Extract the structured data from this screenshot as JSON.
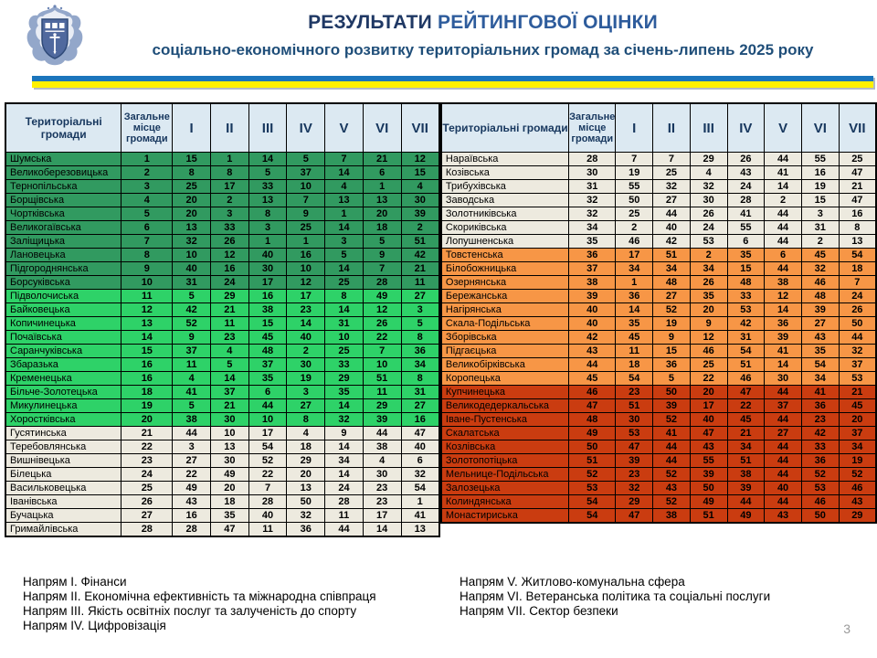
{
  "header": {
    "title_main": "РЕЗУЛЬТАТИ",
    "title_rest": " РЕЙТИНГОВОЇ ОЦІНКИ",
    "subtitle": "соціально-економічного розвитку територіальних громад за січень-липень 2025 року"
  },
  "table": {
    "col_name": "Територіальні громади",
    "col_place": "Загальне місце громади",
    "col_dirs": [
      "I",
      "II",
      "III",
      "IV",
      "V",
      "VI",
      "VII"
    ]
  },
  "tier_colors": {
    "g1": "#319A60",
    "g2": "#2ED268",
    "t0": "#EDEADF",
    "o1": "#F79646",
    "r1": "#CA3C10"
  },
  "left_rows": [
    {
      "name": "Шумська",
      "place": "1",
      "scores": [
        "15",
        "1",
        "14",
        "5",
        "7",
        "21",
        "12"
      ],
      "tier": "g1"
    },
    {
      "name": "Великоберезовицька",
      "place": "2",
      "scores": [
        "8",
        "8",
        "5",
        "37",
        "14",
        "6",
        "15"
      ],
      "tier": "g1"
    },
    {
      "name": "Тернопільська",
      "place": "3",
      "scores": [
        "25",
        "17",
        "33",
        "10",
        "4",
        "1",
        "4"
      ],
      "tier": "g1"
    },
    {
      "name": "Борщівська",
      "place": "4",
      "scores": [
        "20",
        "2",
        "13",
        "7",
        "13",
        "13",
        "30"
      ],
      "tier": "g1"
    },
    {
      "name": "Чортківська",
      "place": "5",
      "scores": [
        "20",
        "3",
        "8",
        "9",
        "1",
        "20",
        "39"
      ],
      "tier": "g1"
    },
    {
      "name": "Великогаївська",
      "place": "6",
      "scores": [
        "13",
        "33",
        "3",
        "25",
        "14",
        "18",
        "2"
      ],
      "tier": "g1"
    },
    {
      "name": "Заліщицька",
      "place": "7",
      "scores": [
        "32",
        "26",
        "1",
        "1",
        "3",
        "5",
        "51"
      ],
      "tier": "g1"
    },
    {
      "name": "Лановецька",
      "place": "8",
      "scores": [
        "10",
        "12",
        "40",
        "16",
        "5",
        "9",
        "42"
      ],
      "tier": "g1"
    },
    {
      "name": "Підгороднянська",
      "place": "9",
      "scores": [
        "40",
        "16",
        "30",
        "10",
        "14",
        "7",
        "21"
      ],
      "tier": "g1"
    },
    {
      "name": "Борсуківська",
      "place": "10",
      "scores": [
        "31",
        "24",
        "17",
        "12",
        "25",
        "28",
        "11"
      ],
      "tier": "g1"
    },
    {
      "name": "Підволочиська",
      "place": "11",
      "scores": [
        "5",
        "29",
        "16",
        "17",
        "8",
        "49",
        "27"
      ],
      "tier": "g2"
    },
    {
      "name": "Байковецька",
      "place": "12",
      "scores": [
        "42",
        "21",
        "38",
        "23",
        "14",
        "12",
        "3"
      ],
      "tier": "g2"
    },
    {
      "name": "Копичинецька",
      "place": "13",
      "scores": [
        "52",
        "11",
        "15",
        "14",
        "31",
        "26",
        "5"
      ],
      "tier": "g2"
    },
    {
      "name": "Почаївська",
      "place": "14",
      "scores": [
        "9",
        "23",
        "45",
        "40",
        "10",
        "22",
        "8"
      ],
      "tier": "g2"
    },
    {
      "name": "Саранчуківська",
      "place": "15",
      "scores": [
        "37",
        "4",
        "48",
        "2",
        "25",
        "7",
        "36"
      ],
      "tier": "g2"
    },
    {
      "name": "Збаразька",
      "place": "16",
      "scores": [
        "11",
        "5",
        "37",
        "30",
        "33",
        "10",
        "34"
      ],
      "tier": "g2"
    },
    {
      "name": "Кременецька",
      "place": "16",
      "scores": [
        "4",
        "14",
        "35",
        "19",
        "29",
        "51",
        "8"
      ],
      "tier": "g2"
    },
    {
      "name": "Більче-Золотецька",
      "place": "18",
      "scores": [
        "41",
        "37",
        "6",
        "3",
        "35",
        "11",
        "31"
      ],
      "tier": "g2"
    },
    {
      "name": "Микулинецька",
      "place": "19",
      "scores": [
        "5",
        "21",
        "44",
        "27",
        "14",
        "29",
        "27"
      ],
      "tier": "g2"
    },
    {
      "name": "Хоростківська",
      "place": "20",
      "scores": [
        "38",
        "30",
        "10",
        "8",
        "32",
        "39",
        "16"
      ],
      "tier": "g2"
    },
    {
      "name": "Гусятинська",
      "place": "21",
      "scores": [
        "44",
        "10",
        "17",
        "4",
        "9",
        "44",
        "47"
      ],
      "tier": "t0"
    },
    {
      "name": "Теребовлянська",
      "place": "22",
      "scores": [
        "3",
        "13",
        "54",
        "18",
        "14",
        "38",
        "40"
      ],
      "tier": "t0"
    },
    {
      "name": "Вишнівецька",
      "place": "23",
      "scores": [
        "27",
        "30",
        "52",
        "29",
        "34",
        "4",
        "6"
      ],
      "tier": "t0"
    },
    {
      "name": "Білецька",
      "place": "24",
      "scores": [
        "22",
        "49",
        "22",
        "20",
        "14",
        "30",
        "32"
      ],
      "tier": "t0"
    },
    {
      "name": "Васильковецька",
      "place": "25",
      "scores": [
        "49",
        "20",
        "7",
        "13",
        "24",
        "23",
        "54"
      ],
      "tier": "t0"
    },
    {
      "name": "Іванівська",
      "place": "26",
      "scores": [
        "43",
        "18",
        "28",
        "50",
        "28",
        "23",
        "1"
      ],
      "tier": "t0"
    },
    {
      "name": "Бучацька",
      "place": "27",
      "scores": [
        "16",
        "35",
        "40",
        "32",
        "11",
        "17",
        "41"
      ],
      "tier": "t0"
    },
    {
      "name": "Гримайлівська",
      "place": "28",
      "scores": [
        "28",
        "47",
        "11",
        "36",
        "44",
        "14",
        "13"
      ],
      "tier": "t0"
    }
  ],
  "right_rows": [
    {
      "name": "Нараївська",
      "place": "28",
      "scores": [
        "7",
        "7",
        "29",
        "26",
        "44",
        "55",
        "25"
      ],
      "tier": "t0"
    },
    {
      "name": "Козівська",
      "place": "30",
      "scores": [
        "19",
        "25",
        "4",
        "43",
        "41",
        "16",
        "47"
      ],
      "tier": "t0"
    },
    {
      "name": "Трибухівська",
      "place": "31",
      "scores": [
        "55",
        "32",
        "32",
        "24",
        "14",
        "19",
        "21"
      ],
      "tier": "t0"
    },
    {
      "name": "Заводська",
      "place": "32",
      "scores": [
        "50",
        "27",
        "30",
        "28",
        "2",
        "15",
        "47"
      ],
      "tier": "t0"
    },
    {
      "name": "Золотниківська",
      "place": "32",
      "scores": [
        "25",
        "44",
        "26",
        "41",
        "44",
        "3",
        "16"
      ],
      "tier": "t0"
    },
    {
      "name": "Скориківська",
      "place": "34",
      "scores": [
        "2",
        "40",
        "24",
        "55",
        "44",
        "31",
        "8"
      ],
      "tier": "t0"
    },
    {
      "name": "Лопушненська",
      "place": "35",
      "scores": [
        "46",
        "42",
        "53",
        "6",
        "44",
        "2",
        "13"
      ],
      "tier": "t0"
    },
    {
      "name": "Товстенська",
      "place": "36",
      "scores": [
        "17",
        "51",
        "2",
        "35",
        "6",
        "45",
        "54"
      ],
      "tier": "o1"
    },
    {
      "name": "Білобожницька",
      "place": "37",
      "scores": [
        "34",
        "34",
        "34",
        "15",
        "44",
        "32",
        "18"
      ],
      "tier": "o1"
    },
    {
      "name": "Озернянська",
      "place": "38",
      "scores": [
        "1",
        "48",
        "26",
        "48",
        "38",
        "46",
        "7"
      ],
      "tier": "o1"
    },
    {
      "name": "Бережанська",
      "place": "39",
      "scores": [
        "36",
        "27",
        "35",
        "33",
        "12",
        "48",
        "24"
      ],
      "tier": "o1"
    },
    {
      "name": "Нагірянська",
      "place": "40",
      "scores": [
        "14",
        "52",
        "20",
        "53",
        "14",
        "39",
        "26"
      ],
      "tier": "o1"
    },
    {
      "name": "Скала-Подільська",
      "place": "40",
      "scores": [
        "35",
        "19",
        "9",
        "42",
        "36",
        "27",
        "50"
      ],
      "tier": "o1"
    },
    {
      "name": "Зборівська",
      "place": "42",
      "scores": [
        "45",
        "9",
        "12",
        "31",
        "39",
        "43",
        "44"
      ],
      "tier": "o1"
    },
    {
      "name": "Підгаєцька",
      "place": "43",
      "scores": [
        "11",
        "15",
        "46",
        "54",
        "41",
        "35",
        "32"
      ],
      "tier": "o1"
    },
    {
      "name": "Великобірківська",
      "place": "44",
      "scores": [
        "18",
        "36",
        "25",
        "51",
        "14",
        "54",
        "37"
      ],
      "tier": "o1"
    },
    {
      "name": "Коропецька",
      "place": "45",
      "scores": [
        "54",
        "5",
        "22",
        "46",
        "30",
        "34",
        "53"
      ],
      "tier": "o1"
    },
    {
      "name": "Купчинецька",
      "place": "46",
      "scores": [
        "23",
        "50",
        "20",
        "47",
        "44",
        "41",
        "21"
      ],
      "tier": "r1"
    },
    {
      "name": "Великодедеркальська",
      "place": "47",
      "scores": [
        "51",
        "39",
        "17",
        "22",
        "37",
        "36",
        "45"
      ],
      "tier": "r1"
    },
    {
      "name": "Іване-Пустенська",
      "place": "48",
      "scores": [
        "30",
        "52",
        "40",
        "45",
        "44",
        "23",
        "20"
      ],
      "tier": "r1"
    },
    {
      "name": "Скалатська",
      "place": "49",
      "scores": [
        "53",
        "41",
        "47",
        "21",
        "27",
        "42",
        "37"
      ],
      "tier": "r1"
    },
    {
      "name": "Козлівська",
      "place": "50",
      "scores": [
        "47",
        "44",
        "43",
        "34",
        "44",
        "33",
        "34"
      ],
      "tier": "r1"
    },
    {
      "name": "Золотопотіцька",
      "place": "51",
      "scores": [
        "39",
        "44",
        "55",
        "51",
        "44",
        "36",
        "19"
      ],
      "tier": "r1"
    },
    {
      "name": "Мельнице-Подільська",
      "place": "52",
      "scores": [
        "23",
        "52",
        "39",
        "38",
        "44",
        "52",
        "52"
      ],
      "tier": "r1"
    },
    {
      "name": "Залозецька",
      "place": "53",
      "scores": [
        "32",
        "43",
        "50",
        "39",
        "40",
        "53",
        "46"
      ],
      "tier": "r1"
    },
    {
      "name": "Колиндянська",
      "place": "54",
      "scores": [
        "29",
        "52",
        "49",
        "44",
        "44",
        "46",
        "43"
      ],
      "tier": "r1"
    },
    {
      "name": "Монастириська",
      "place": "54",
      "scores": [
        "47",
        "38",
        "51",
        "49",
        "43",
        "50",
        "29"
      ],
      "tier": "r1"
    }
  ],
  "footnotes": {
    "left": [
      "Напрям І. Фінанси",
      "Напрям ІІ. Економічна ефективність та міжнародна співпраця",
      "Напрям ІІІ. Якість освітніх послуг та залученість до спорту",
      "Напрям ІV. Цифровізація"
    ],
    "right": [
      "Напрям V. Житлово-комунальна сфера",
      "Напрям VІ. Ветеранська політика та  соціальні послуги",
      "Напрям VІІ. Сектор безпеки"
    ]
  },
  "page_number": "3"
}
